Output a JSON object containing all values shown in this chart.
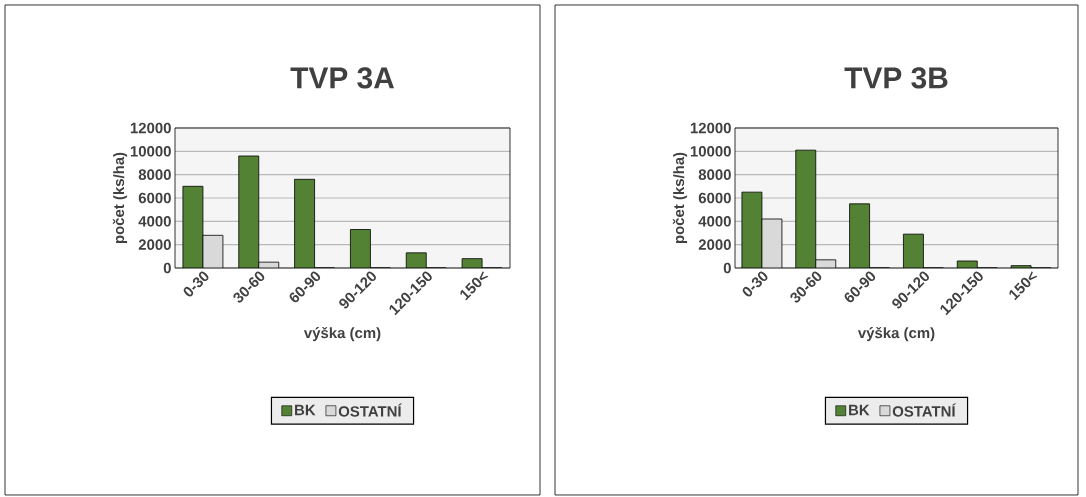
{
  "chart_data": [
    {
      "type": "bar",
      "title": "TVP 3A",
      "xlabel": "výška (cm)",
      "ylabel": "počet (ks/ha)",
      "categories": [
        "0-30",
        "30-60",
        "60-90",
        "90-120",
        "120-150",
        "150<"
      ],
      "series": [
        {
          "name": "BK",
          "color": "#548235",
          "values": [
            7000,
            9600,
            7600,
            3300,
            1300,
            800
          ]
        },
        {
          "name": "OSTATNÍ",
          "color": "#d9d9d9",
          "values": [
            2800,
            500,
            0,
            0,
            0,
            0
          ]
        }
      ],
      "ylim": [
        0,
        12000
      ],
      "yticks": [
        0,
        2000,
        4000,
        6000,
        8000,
        10000,
        12000
      ],
      "grid": "y",
      "legend": "bottom"
    },
    {
      "type": "bar",
      "title": "TVP 3B",
      "xlabel": "výška (cm)",
      "ylabel": "počet (ks/ha)",
      "categories": [
        "0-30",
        "30-60",
        "60-90",
        "90-120",
        "120-150",
        "150<"
      ],
      "series": [
        {
          "name": "BK",
          "color": "#548235",
          "values": [
            6500,
            10100,
            5500,
            2900,
            600,
            200
          ]
        },
        {
          "name": "OSTATNÍ",
          "color": "#d9d9d9",
          "values": [
            4200,
            700,
            0,
            0,
            0,
            0
          ]
        }
      ],
      "ylim": [
        0,
        12000
      ],
      "yticks": [
        0,
        2000,
        4000,
        6000,
        8000,
        10000,
        12000
      ],
      "grid": "y",
      "legend": "bottom"
    }
  ]
}
